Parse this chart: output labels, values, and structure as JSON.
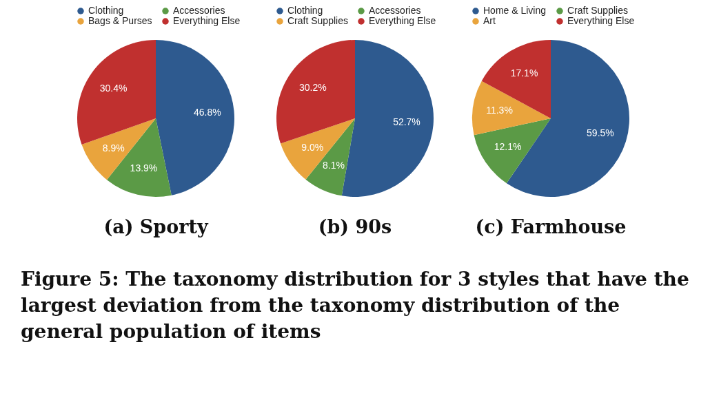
{
  "chart_data": [
    {
      "type": "pie",
      "title": "(a) Sporty",
      "categories": [
        "Clothing",
        "Accessories",
        "Bags & Purses",
        "Everything Else"
      ],
      "values": [
        46.8,
        13.9,
        8.9,
        30.4
      ],
      "value_labels": [
        "46.8%",
        "13.9%",
        "8.9%",
        "30.4%"
      ],
      "colors": [
        "#2e5a8f",
        "#5b9a46",
        "#e9a43d",
        "#c0302f"
      ],
      "legend": "top",
      "annotations": [
        "Figure 5: The taxonomy distribution for 3 styles that have the largest deviation from the taxonomy distribution of the general population of items"
      ]
    },
    {
      "type": "pie",
      "title": "(b) 90s",
      "categories": [
        "Clothing",
        "Accessories",
        "Craft Supplies",
        "Everything Else"
      ],
      "values": [
        52.7,
        8.1,
        9.0,
        30.2
      ],
      "value_labels": [
        "52.7%",
        "8.1%",
        "9.0%",
        "30.2%"
      ],
      "colors": [
        "#2e5a8f",
        "#5b9a46",
        "#e9a43d",
        "#c0302f"
      ],
      "legend": "top"
    },
    {
      "type": "pie",
      "title": "(c) Farmhouse",
      "categories": [
        "Home & Living",
        "Craft Supplies",
        "Art",
        "Everything Else"
      ],
      "values": [
        59.5,
        12.1,
        11.3,
        17.1
      ],
      "value_labels": [
        "59.5%",
        "12.1%",
        "11.3%",
        "17.1%"
      ],
      "colors": [
        "#2e5a8f",
        "#5b9a46",
        "#e9a43d",
        "#c0302f"
      ],
      "legend": "top"
    }
  ]
}
